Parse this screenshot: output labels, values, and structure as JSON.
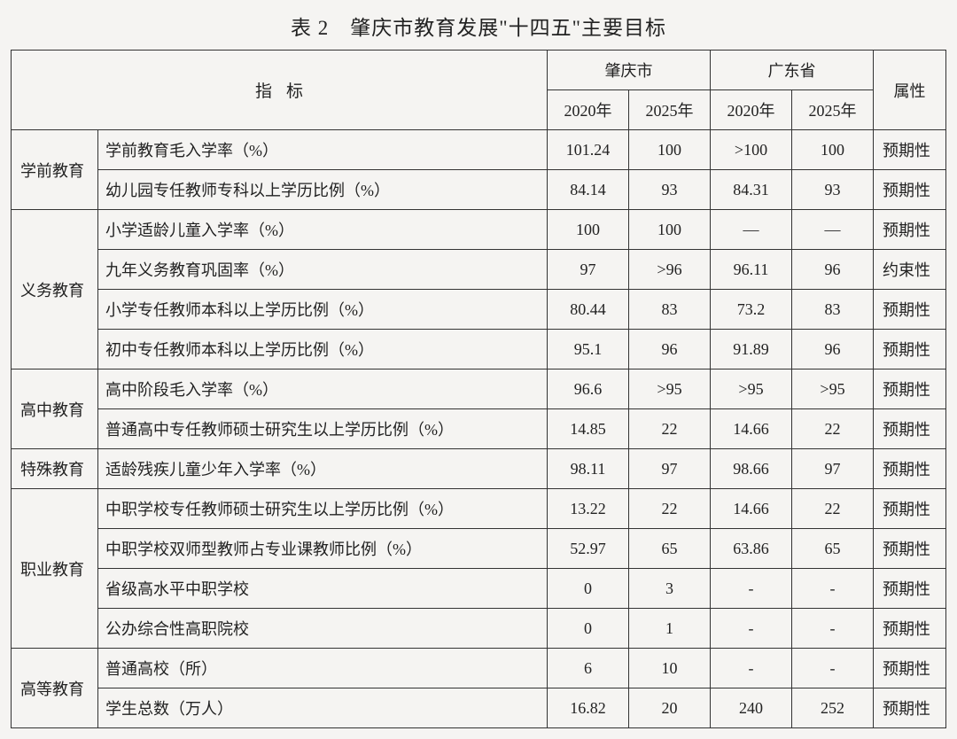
{
  "title": "表 2　肇庆市教育发展\"十四五\"主要目标",
  "header": {
    "indicator": "指标",
    "region_a": "肇庆市",
    "region_b": "广东省",
    "year_a": "2020年",
    "year_b": "2025年",
    "attribute": "属性"
  },
  "categories": [
    {
      "name": "学前教育",
      "rows": [
        {
          "metric": "学前教育毛入学率（%）",
          "a20": "101.24",
          "a25": "100",
          "b20": ">100",
          "b25": "100",
          "attr": "预期性"
        },
        {
          "metric": "幼儿园专任教师专科以上学历比例（%）",
          "a20": "84.14",
          "a25": "93",
          "b20": "84.31",
          "b25": "93",
          "attr": "预期性"
        }
      ]
    },
    {
      "name": "义务教育",
      "rows": [
        {
          "metric": "小学适龄儿童入学率（%）",
          "a20": "100",
          "a25": "100",
          "b20": "—",
          "b25": "—",
          "attr": "预期性"
        },
        {
          "metric": "九年义务教育巩固率（%）",
          "a20": "97",
          "a25": ">96",
          "b20": "96.11",
          "b25": "96",
          "attr": "约束性"
        },
        {
          "metric": "小学专任教师本科以上学历比例（%）",
          "a20": "80.44",
          "a25": "83",
          "b20": "73.2",
          "b25": "83",
          "attr": "预期性"
        },
        {
          "metric": "初中专任教师本科以上学历比例（%）",
          "a20": "95.1",
          "a25": "96",
          "b20": "91.89",
          "b25": "96",
          "attr": "预期性"
        }
      ]
    },
    {
      "name": "高中教育",
      "rows": [
        {
          "metric": "高中阶段毛入学率（%）",
          "a20": "96.6",
          "a25": ">95",
          "b20": ">95",
          "b25": ">95",
          "attr": "预期性"
        },
        {
          "metric": "普通高中专任教师硕士研究生以上学历比例（%）",
          "a20": "14.85",
          "a25": "22",
          "b20": "14.66",
          "b25": "22",
          "attr": "预期性"
        }
      ]
    },
    {
      "name": "特殊教育",
      "rows": [
        {
          "metric": "适龄残疾儿童少年入学率（%）",
          "a20": "98.11",
          "a25": "97",
          "b20": "98.66",
          "b25": "97",
          "attr": "预期性"
        }
      ]
    },
    {
      "name": "职业教育",
      "rows": [
        {
          "metric": "中职学校专任教师硕士研究生以上学历比例（%）",
          "a20": "13.22",
          "a25": "22",
          "b20": "14.66",
          "b25": "22",
          "attr": "预期性"
        },
        {
          "metric": "中职学校双师型教师占专业课教师比例（%）",
          "a20": "52.97",
          "a25": "65",
          "b20": "63.86",
          "b25": "65",
          "attr": "预期性"
        },
        {
          "metric": "省级高水平中职学校",
          "a20": "0",
          "a25": "3",
          "b20": "-",
          "b25": "-",
          "attr": "预期性"
        },
        {
          "metric": "公办综合性高职院校",
          "a20": "0",
          "a25": "1",
          "b20": "-",
          "b25": "-",
          "attr": "预期性"
        }
      ]
    },
    {
      "name": "高等教育",
      "rows": [
        {
          "metric": "普通高校（所）",
          "a20": "6",
          "a25": "10",
          "b20": "-",
          "b25": "-",
          "attr": "预期性"
        },
        {
          "metric": "学生总数（万人）",
          "a20": "16.82",
          "a25": "20",
          "b20": "240",
          "b25": "252",
          "attr": "预期性"
        }
      ]
    }
  ],
  "colwidths": {
    "cat": "98px",
    "metric": "auto",
    "val": "92px",
    "attr": "82px"
  },
  "colors": {
    "border": "#333333",
    "background": "#f5f4f2",
    "text": "#222222"
  },
  "fontsize": {
    "title": 23,
    "cell": 18
  }
}
